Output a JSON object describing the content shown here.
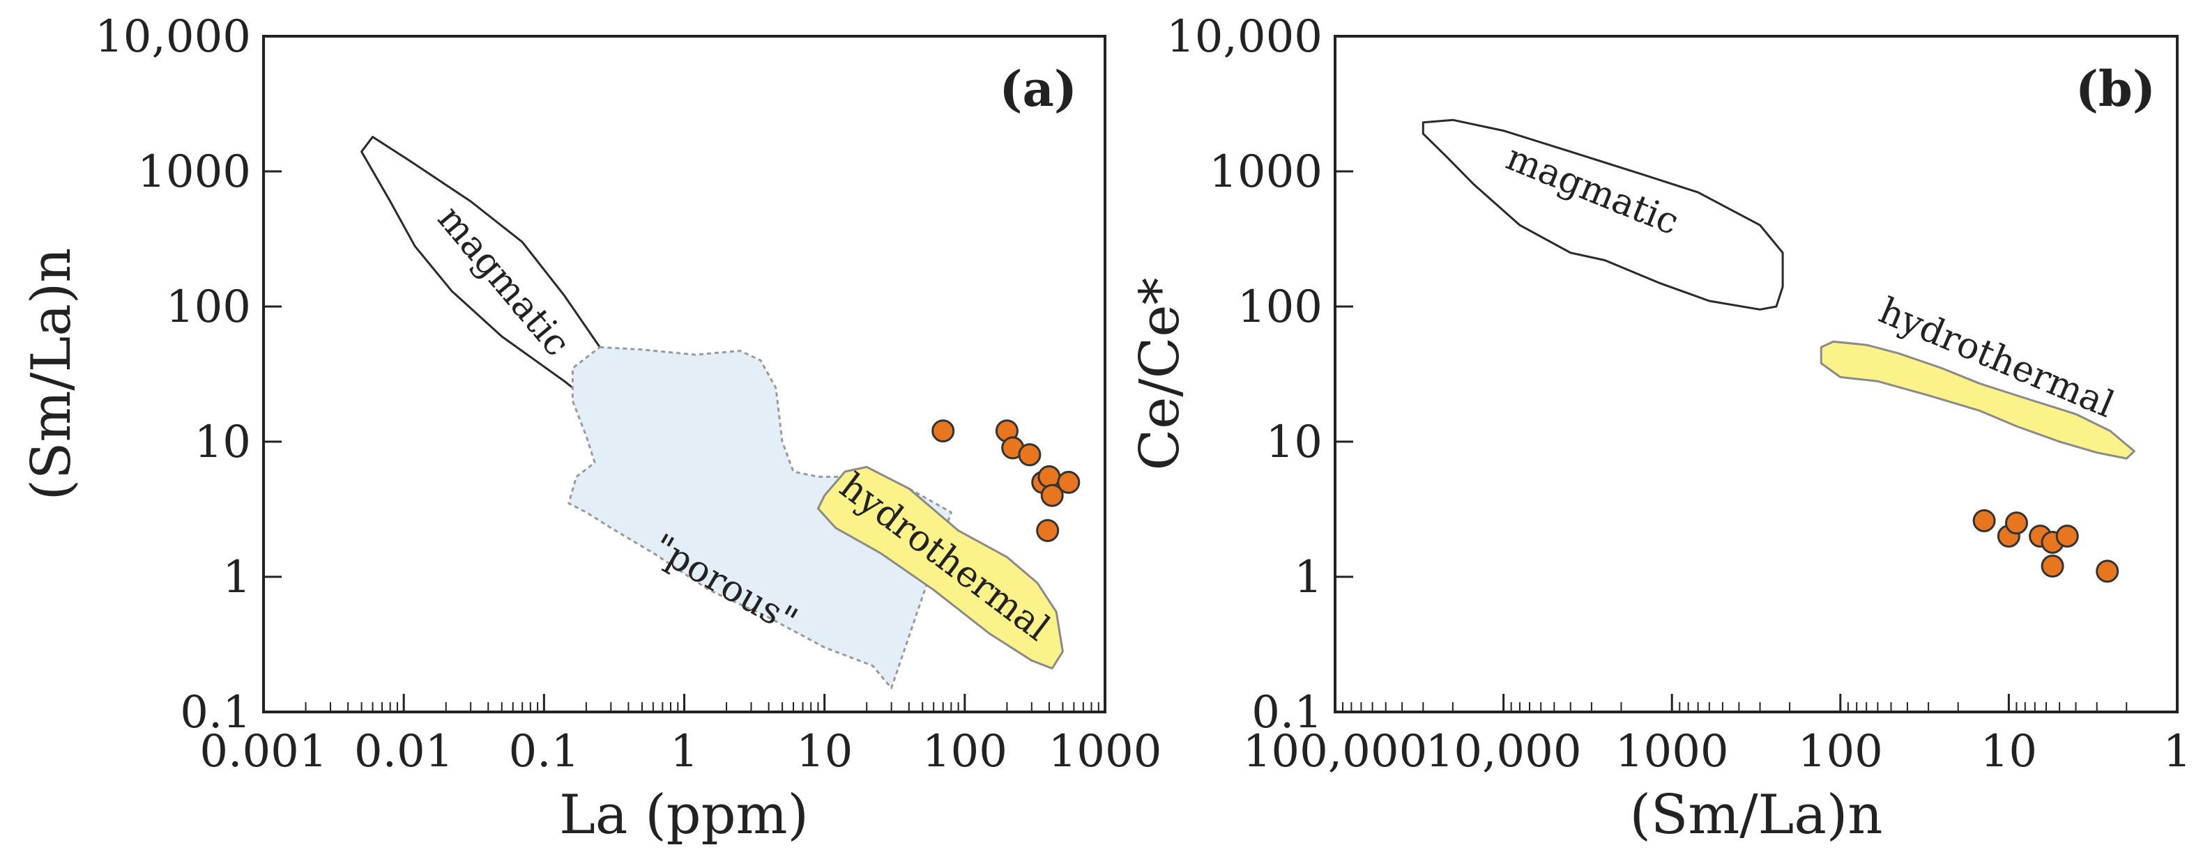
{
  "chart_data": [
    {
      "type": "scatter",
      "panel_label": "(a)",
      "xlabel": "La (ppm)",
      "ylabel": "(Sm/La)n",
      "xscale": "log",
      "yscale": "log",
      "xlim": [
        0.001,
        1000
      ],
      "ylim": [
        0.1,
        10000
      ],
      "x_ticks": [
        0.001,
        0.01,
        0.1,
        1,
        10,
        100,
        1000
      ],
      "x_tick_labels": [
        "0.001",
        "0.01",
        "0.1",
        "1",
        "10",
        "100",
        "1000"
      ],
      "y_ticks": [
        0.1,
        1,
        10,
        100,
        1000,
        10000
      ],
      "y_tick_labels": [
        "0.1",
        "1",
        "10",
        "100",
        "1000",
        "10,000"
      ],
      "fields": [
        {
          "name": "magmatic",
          "label": "magmatic",
          "fill": "none",
          "stroke": "#2a2a2a",
          "dashed": false,
          "polygon": [
            [
              0.006,
              1800
            ],
            [
              0.011,
              1200
            ],
            [
              0.03,
              600
            ],
            [
              0.07,
              300
            ],
            [
              0.14,
              120
            ],
            [
              0.25,
              50
            ],
            [
              0.3,
              22
            ],
            [
              0.24,
              18
            ],
            [
              0.14,
              28
            ],
            [
              0.05,
              60
            ],
            [
              0.022,
              130
            ],
            [
              0.012,
              280
            ],
            [
              0.008,
              600
            ],
            [
              0.005,
              1400
            ]
          ],
          "label_at": [
            0.05,
            150
          ],
          "label_rotation": 50
        },
        {
          "name": "porous",
          "label": "\"porous\"",
          "fill": "#e4eef7",
          "stroke": "#9a9a9a",
          "dashed": true,
          "polygon": [
            [
              0.25,
              50
            ],
            [
              0.5,
              48
            ],
            [
              1.2,
              44
            ],
            [
              2.5,
              47
            ],
            [
              3.5,
              40
            ],
            [
              4.5,
              25
            ],
            [
              5,
              10
            ],
            [
              6,
              6
            ],
            [
              9,
              5.5
            ],
            [
              18,
              5.5
            ],
            [
              40,
              4.5
            ],
            [
              80,
              3
            ],
            [
              30,
              0.15
            ],
            [
              22,
              0.22
            ],
            [
              10,
              0.3
            ],
            [
              4,
              0.5
            ],
            [
              1.5,
              0.8
            ],
            [
              0.6,
              1.5
            ],
            [
              0.3,
              2.3
            ],
            [
              0.2,
              3
            ],
            [
              0.15,
              3.5
            ],
            [
              0.17,
              5.5
            ],
            [
              0.23,
              7
            ],
            [
              0.2,
              11
            ],
            [
              0.16,
              20
            ],
            [
              0.16,
              35
            ]
          ],
          "label_at": [
            1.9,
            0.85
          ],
          "label_rotation": 30
        },
        {
          "name": "hydrothermal",
          "label": "hydrothermal",
          "fill": "#fbf28a",
          "stroke": "#8a8a8a",
          "dashed": false,
          "polygon": [
            [
              10,
              4
            ],
            [
              14,
              6
            ],
            [
              20,
              6.5
            ],
            [
              40,
              4.5
            ],
            [
              90,
              2.2
            ],
            [
              200,
              1.4
            ],
            [
              330,
              0.9
            ],
            [
              450,
              0.55
            ],
            [
              500,
              0.28
            ],
            [
              420,
              0.21
            ],
            [
              300,
              0.24
            ],
            [
              150,
              0.38
            ],
            [
              60,
              0.8
            ],
            [
              25,
              1.5
            ],
            [
              12,
              2.3
            ],
            [
              9,
              3.2
            ]
          ],
          "label_at": [
            70,
            1.35
          ],
          "label_rotation": 37
        }
      ],
      "points": {
        "marker": "circle",
        "color": "#e8761f",
        "edge_color": "#333333",
        "x": [
          70,
          200,
          220,
          290,
          360,
          400,
          420,
          550,
          390
        ],
        "y": [
          12,
          12,
          9,
          8,
          5,
          5.5,
          4,
          5,
          2.2
        ]
      }
    },
    {
      "type": "scatter",
      "panel_label": "(b)",
      "xlabel": "(Sm/La)n",
      "ylabel": "Ce/Ce*",
      "xscale": "log",
      "xreversed": true,
      "yscale": "log",
      "xlim": [
        100000,
        1
      ],
      "ylim": [
        0.1,
        10000
      ],
      "x_ticks": [
        100000,
        10000,
        1000,
        100,
        10,
        1
      ],
      "x_tick_labels": [
        "100,000",
        "10,000",
        "1000",
        "100",
        "10",
        "1"
      ],
      "y_ticks": [
        0.1,
        1,
        10,
        100,
        1000,
        10000
      ],
      "y_tick_labels": [
        "0.1",
        "1",
        "10",
        "100",
        "1000",
        "10,000"
      ],
      "fields": [
        {
          "name": "magmatic",
          "label": "magmatic",
          "fill": "none",
          "stroke": "#2a2a2a",
          "dashed": false,
          "polygon": [
            [
              30000,
              2300
            ],
            [
              20000,
              2400
            ],
            [
              10000,
              2000
            ],
            [
              4000,
              1400
            ],
            [
              1500,
              950
            ],
            [
              700,
              700
            ],
            [
              300,
              400
            ],
            [
              220,
              250
            ],
            [
              220,
              140
            ],
            [
              240,
              100
            ],
            [
              300,
              95
            ],
            [
              600,
              110
            ],
            [
              1200,
              150
            ],
            [
              2500,
              220
            ],
            [
              4000,
              250
            ],
            [
              8000,
              400
            ],
            [
              15000,
              800
            ],
            [
              22000,
              1300
            ],
            [
              30000,
              1900
            ]
          ],
          "label_at": [
            3000,
            700
          ],
          "label_rotation": 22
        },
        {
          "name": "hydrothermal",
          "label": "hydrothermal",
          "fill": "#fbf28a",
          "stroke": "#8a8a8a",
          "dashed": false,
          "polygon": [
            [
              130,
              50
            ],
            [
              110,
              55
            ],
            [
              70,
              52
            ],
            [
              45,
              45
            ],
            [
              25,
              35
            ],
            [
              15,
              27
            ],
            [
              8,
              21
            ],
            [
              4,
              16
            ],
            [
              2.5,
              12
            ],
            [
              1.8,
              8.5
            ],
            [
              2,
              7.5
            ],
            [
              3,
              8.3
            ],
            [
              5,
              10
            ],
            [
              9,
              13
            ],
            [
              15,
              17
            ],
            [
              30,
              22
            ],
            [
              60,
              28
            ],
            [
              100,
              30
            ],
            [
              130,
              38
            ]
          ],
          "label_at": [
            12,
            40
          ],
          "label_rotation": 23
        }
      ],
      "points": {
        "marker": "circle",
        "color": "#e8761f",
        "edge_color": "#333333",
        "x": [
          14,
          10,
          9,
          6.5,
          5.5,
          5.5,
          4.5,
          2.6
        ],
        "y": [
          2.6,
          2.0,
          2.5,
          2.0,
          1.8,
          1.2,
          2.0,
          1.1
        ]
      }
    }
  ]
}
